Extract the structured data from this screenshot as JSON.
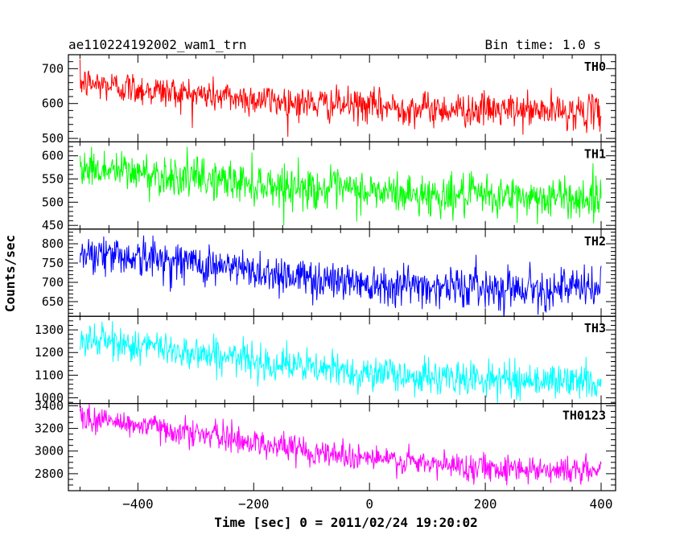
{
  "header": {
    "title": "ae110224192002_wam1_trn",
    "bin_time": "Bin time: 1.0 s"
  },
  "axes": {
    "xlabel": "Time [sec] 0 = 2011/02/24 19:20:02",
    "ylabel": "Counts/sec"
  },
  "chart_data": {
    "type": "line",
    "title": "ae110224192002_wam1_trn",
    "subtitle": "Bin time: 1.0 s",
    "xlabel": "Time [sec] 0 = 2011/02/24 19:20:02",
    "ylabel": "Counts/sec",
    "xlim": [
      -520,
      425
    ],
    "x_ticks": [
      -400,
      -200,
      0,
      200,
      400
    ],
    "x_tick_labels": [
      "−400",
      "−200",
      "0",
      "200",
      "400"
    ],
    "x_range": [
      -500,
      400
    ],
    "grid": false,
    "panels": [
      {
        "name": "TH0",
        "color": "#ff0000",
        "ylim": [
          490,
          740
        ],
        "yticks": [
          500,
          600,
          700
        ],
        "minor_step": 20,
        "trend": [
          [
            -500,
            660
          ],
          [
            -330,
            630
          ],
          [
            -100,
            600
          ],
          [
            100,
            585
          ],
          [
            400,
            575
          ]
        ],
        "noise_sd": 24
      },
      {
        "name": "TH1",
        "color": "#00ff00",
        "ylim": [
          442,
          630
        ],
        "yticks": [
          450,
          500,
          550,
          600
        ],
        "minor_step": 10,
        "trend": [
          [
            -500,
            575
          ],
          [
            -330,
            555
          ],
          [
            -100,
            530
          ],
          [
            100,
            515
          ],
          [
            400,
            508
          ]
        ],
        "noise_sd": 22
      },
      {
        "name": "TH2",
        "color": "#0000ff",
        "ylim": [
          612,
          838
        ],
        "yticks": [
          650,
          700,
          750,
          800
        ],
        "minor_step": 10,
        "trend": [
          [
            -500,
            780
          ],
          [
            -330,
            755
          ],
          [
            -100,
            710
          ],
          [
            100,
            690
          ],
          [
            400,
            683
          ]
        ],
        "noise_sd": 26
      },
      {
        "name": "TH3",
        "color": "#00ffff",
        "ylim": [
          975,
          1360
        ],
        "yticks": [
          1000,
          1100,
          1200,
          1300
        ],
        "minor_step": 20,
        "trend": [
          [
            -500,
            1260
          ],
          [
            -330,
            1210
          ],
          [
            -100,
            1130
          ],
          [
            100,
            1090
          ],
          [
            400,
            1070
          ]
        ],
        "noise_sd": 38
      },
      {
        "name": "TH0123",
        "color": "#ff00ff",
        "ylim": [
          2650,
          3420
        ],
        "yticks": [
          2800,
          3000,
          3200,
          3400
        ],
        "minor_step": 50,
        "trend": [
          [
            -500,
            3300
          ],
          [
            -330,
            3180
          ],
          [
            -100,
            3000
          ],
          [
            100,
            2880
          ],
          [
            400,
            2820
          ]
        ],
        "noise_sd": 60
      }
    ]
  }
}
